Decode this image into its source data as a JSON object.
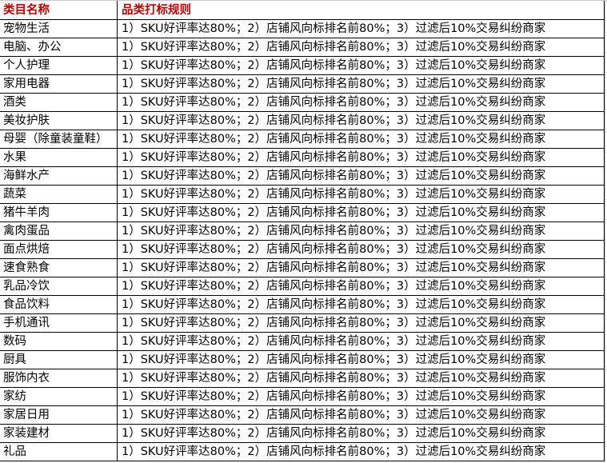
{
  "header": {
    "col1": "类目名称",
    "col2": "品类打标规则"
  },
  "accent_color": "#c00000",
  "rows": [
    {
      "category": "宠物生活",
      "rule": "1）SKU好评率达80%；2）店铺风向标排名前80%；3）过滤后10%交易纠纷商家"
    },
    {
      "category": "电脑、办公",
      "rule": "1）SKU好评率达80%；2）店铺风向标排名前80%；3）过滤后10%交易纠纷商家"
    },
    {
      "category": "个人护理",
      "rule": "1）SKU好评率达80%；2）店铺风向标排名前80%；3）过滤后10%交易纠纷商家"
    },
    {
      "category": "家用电器",
      "rule": "1）SKU好评率达80%；2）店铺风向标排名前80%；3）过滤后10%交易纠纷商家"
    },
    {
      "category": "酒类",
      "rule": "1）SKU好评率达80%；2）店铺风向标排名前80%；3）过滤后10%交易纠纷商家"
    },
    {
      "category": "美妆护肤",
      "rule": "1）SKU好评率达80%；2）店铺风向标排名前80%；3）过滤后10%交易纠纷商家"
    },
    {
      "category": "母婴（除童装童鞋）",
      "rule": "1）SKU好评率达80%；2）店铺风向标排名前80%；3）过滤后10%交易纠纷商家"
    },
    {
      "category": "水果",
      "rule": "1）SKU好评率达80%；2）店铺风向标排名前80%；3）过滤后10%交易纠纷商家"
    },
    {
      "category": "海鲜水产",
      "rule": "1）SKU好评率达80%；2）店铺风向标排名前80%；3）过滤后10%交易纠纷商家"
    },
    {
      "category": "蔬菜",
      "rule": "1）SKU好评率达80%；2）店铺风向标排名前80%；3）过滤后10%交易纠纷商家"
    },
    {
      "category": "猪牛羊肉",
      "rule": "1）SKU好评率达80%；2）店铺风向标排名前80%；3）过滤后10%交易纠纷商家"
    },
    {
      "category": "禽肉蛋品",
      "rule": "1）SKU好评率达80%；2）店铺风向标排名前80%；3）过滤后10%交易纠纷商家"
    },
    {
      "category": "面点烘焙",
      "rule": "1）SKU好评率达80%；2）店铺风向标排名前80%；3）过滤后10%交易纠纷商家"
    },
    {
      "category": "速食熟食",
      "rule": "1）SKU好评率达80%；2）店铺风向标排名前80%；3）过滤后10%交易纠纷商家"
    },
    {
      "category": "乳品冷饮",
      "rule": "1）SKU好评率达80%；2）店铺风向标排名前80%；3）过滤后10%交易纠纷商家"
    },
    {
      "category": "食品饮料",
      "rule": "1）SKU好评率达80%；2）店铺风向标排名前80%；3）过滤后10%交易纠纷商家"
    },
    {
      "category": "手机通讯",
      "rule": "1）SKU好评率达80%；2）店铺风向标排名前80%；3）过滤后10%交易纠纷商家"
    },
    {
      "category": "数码",
      "rule": "1）SKU好评率达80%；2）店铺风向标排名前80%；3）过滤后10%交易纠纷商家"
    },
    {
      "category": "厨具",
      "rule": "1）SKU好评率达80%；2）店铺风向标排名前80%；3）过滤后10%交易纠纷商家"
    },
    {
      "category": "服饰内衣",
      "rule": "1）SKU好评率达80%；2）店铺风向标排名前80%；3）过滤后10%交易纠纷商家"
    },
    {
      "category": "家纺",
      "rule": "1）SKU好评率达80%；2）店铺风向标排名前80%；3）过滤后10%交易纠纷商家"
    },
    {
      "category": "家居日用",
      "rule": "1）SKU好评率达80%；2）店铺风向标排名前80%；3）过滤后10%交易纠纷商家"
    },
    {
      "category": "家装建材",
      "rule": "1）SKU好评率达80%；2）店铺风向标排名前80%；3）过滤后10%交易纠纷商家"
    },
    {
      "category": "礼品",
      "rule": "1）SKU好评率达80%；2）店铺风向标排名前80%；3）过滤后10%交易纠纷商家"
    }
  ]
}
